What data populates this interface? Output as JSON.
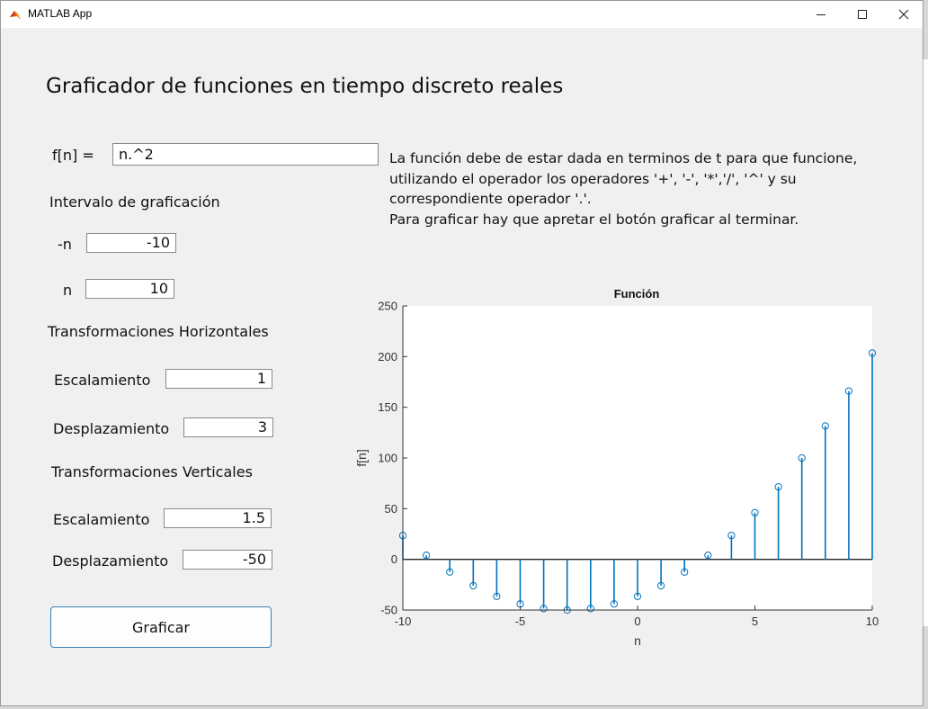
{
  "window": {
    "title": "MATLAB App",
    "icon": "matlab-icon"
  },
  "heading": "Graficador de funciones en tiempo discreto reales",
  "function": {
    "label": "f[n] =",
    "value": "n.^2"
  },
  "interval": {
    "title": "Intervalo de graficación",
    "lower_label": "-n",
    "lower_value": "-10",
    "upper_label": "n",
    "upper_value": "10"
  },
  "horizontal": {
    "title": "Transformaciones Horizontales",
    "scale_label": "Escalamiento",
    "scale_value": "1",
    "shift_label": "Desplazamiento",
    "shift_value": "3"
  },
  "vertical": {
    "title": "Transformaciones Verticales",
    "scale_label": "Escalamiento",
    "scale_value": "1.5",
    "shift_label": "Desplazamiento",
    "shift_value": "-50"
  },
  "help_text": [
    "La función debe de estar dada en terminos de t para que funcione,",
    "utilizando el operador los operadores '+', '-', '*','/', '^' y su",
    "correspondiente operador '.'.",
    "Para graficar hay que apretar el botón graficar al terminar."
  ],
  "button": {
    "label": "Graficar"
  },
  "colors": {
    "stem": "#0072bd",
    "accent_border": "#3c7fb1"
  },
  "chart_data": {
    "type": "stem",
    "title": "Función",
    "xlabel": "n",
    "ylabel": "f[n]",
    "xlim": [
      -10,
      10
    ],
    "ylim": [
      -50,
      250
    ],
    "xticks": [
      "-10",
      "-5",
      "0",
      "5",
      "10"
    ],
    "yticks": [
      "-50",
      "0",
      "50",
      "100",
      "150",
      "200",
      "250"
    ],
    "x": [
      -10,
      -9,
      -8,
      -7,
      -6,
      -5,
      -4,
      -3,
      -2,
      -1,
      0,
      1,
      2,
      3,
      4,
      5,
      6,
      7,
      8,
      9,
      10
    ],
    "y": [
      23.5,
      4,
      -12.5,
      -26,
      -36.5,
      -44,
      -48.5,
      -50,
      -48.5,
      -44,
      -36.5,
      -26,
      -12.5,
      4,
      23.5,
      46,
      71.5,
      100,
      131.5,
      166,
      203.5
    ],
    "grid": false
  }
}
